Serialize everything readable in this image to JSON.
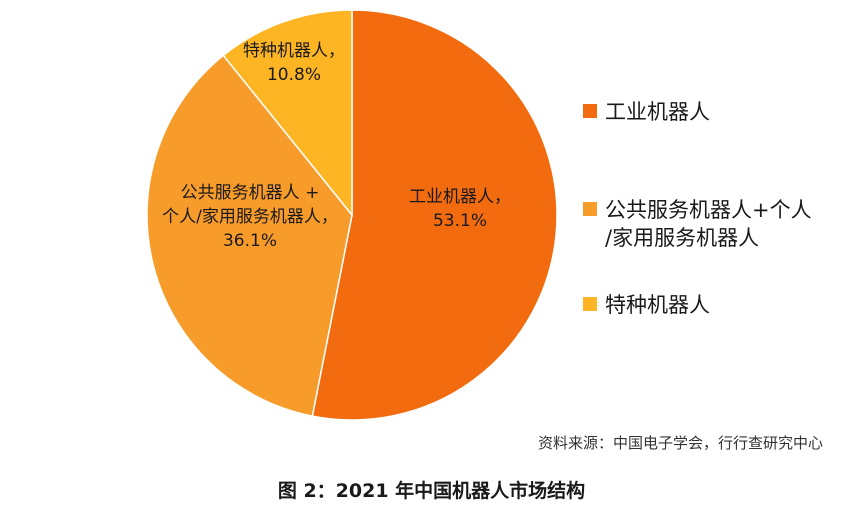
{
  "chart_data": {
    "type": "pie",
    "categories": [
      "工业机器人",
      "公共服务机器人+个人/家用服务机器人",
      "特种机器人"
    ],
    "values": [
      53.1,
      36.1,
      10.8
    ],
    "unit": "%",
    "slice_labels": [
      [
        "工业机器人，",
        "53.1%"
      ],
      [
        "公共服务机器人 +",
        "个人/家用服务机器人，",
        "36.1%"
      ],
      [
        "特种机器人，",
        "10.8%"
      ]
    ],
    "legend": [
      [
        "工业机器人"
      ],
      [
        "公共服务机器人+个人",
        "/家用服务机器人"
      ],
      [
        "特种机器人"
      ]
    ],
    "legend_position": "right",
    "colors": [
      "#F26B0F",
      "#F79B2A",
      "#FDB524"
    ]
  },
  "source": "资料来源：中国电子学会，行行查研究中心",
  "caption": "图 2：2021 年中国机器人市场结构"
}
